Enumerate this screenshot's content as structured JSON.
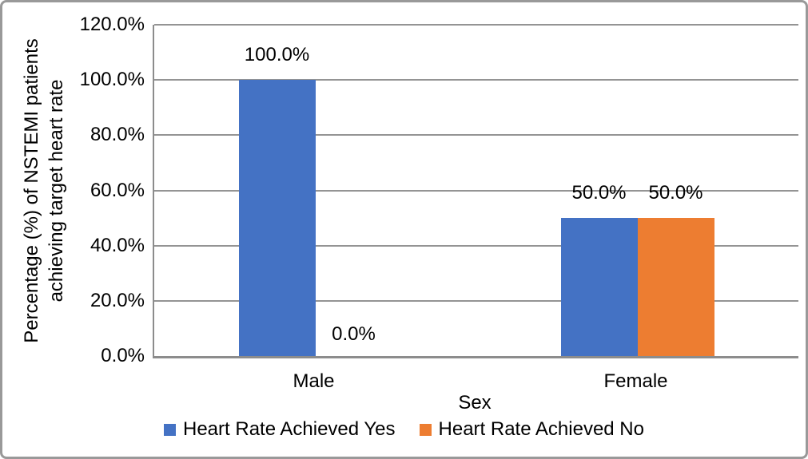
{
  "chart_data": {
    "type": "bar",
    "title": "",
    "categories": [
      "Male",
      "Female"
    ],
    "series": [
      {
        "name": "Heart Rate Achieved Yes",
        "color": "#4472C4",
        "values": [
          100.0,
          50.0
        ],
        "labels": [
          "100.0%",
          "50.0%"
        ]
      },
      {
        "name": "Heart Rate Achieved No",
        "color": "#ED7D31",
        "values": [
          0.0,
          50.0
        ],
        "labels": [
          "0.0%",
          "50.0%"
        ]
      }
    ],
    "xlabel": "Sex",
    "ylabel": "Percentage (%) of NSTEMI patients achieving target heart rate",
    "ylabel_lines": [
      "Percentage (%) of NSTEMI patients",
      "achieving target heart rate"
    ],
    "y_tick_values": [
      0,
      20,
      40,
      60,
      80,
      100,
      120
    ],
    "y_tick_labels": [
      "0.0%",
      "20.0%",
      "40.0%",
      "60.0%",
      "80.0%",
      "100.0%",
      "120.0%"
    ],
    "ylim": [
      0,
      120
    ],
    "grid": true,
    "legend_position": "bottom",
    "colors": {
      "grid": "#949494",
      "axis": "#8c8c8c",
      "frame_border": "#999999",
      "text": "#000000"
    }
  }
}
